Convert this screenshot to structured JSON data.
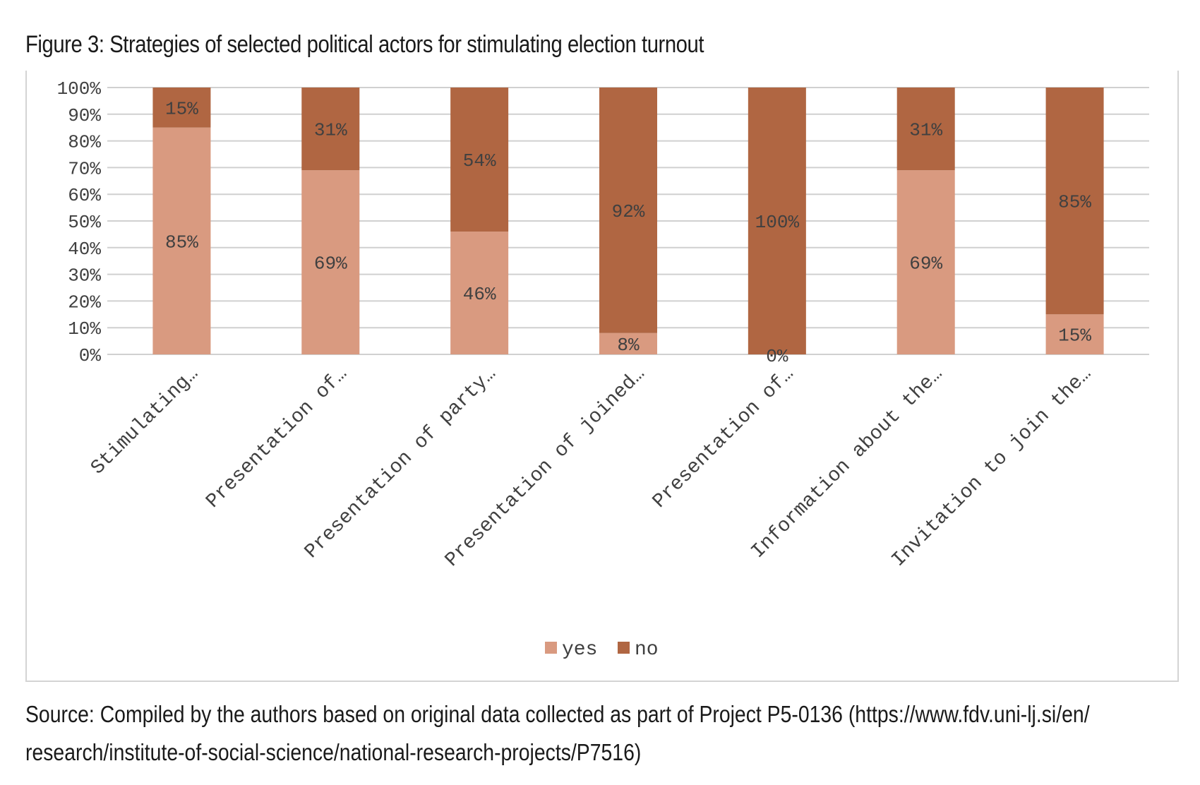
{
  "figure": {
    "title": "Figure 3: Strategies of selected political actors for stimulating election turnout",
    "source_line1": "Source: Compiled by the authors based on original data collected as part of Project P5-0136 (https://www.fdv.uni-lj.si/en/",
    "source_line2": "research/institute-of-social-science/national-research-projects/P7516)"
  },
  "chart_data": {
    "type": "bar",
    "stacked": true,
    "percent_stacked": true,
    "categories": [
      "Stimulating…",
      "Presentation of…",
      "Presentation of party…",
      "Presentation of joined…",
      "Presentation of…",
      "Information about the…",
      "Invitation to join the…"
    ],
    "series": [
      {
        "name": "yes",
        "values": [
          85,
          69,
          46,
          8,
          0,
          69,
          15
        ],
        "labels": [
          "85%",
          "69%",
          "46%",
          "8%",
          "0%",
          "69%",
          "15%"
        ]
      },
      {
        "name": "no",
        "values": [
          15,
          31,
          54,
          92,
          100,
          31,
          85
        ],
        "labels": [
          "15%",
          "31%",
          "54%",
          "92%",
          "100%",
          "31%",
          "85%"
        ]
      }
    ],
    "colors": {
      "yes": "#d99a80",
      "no": "#b06642",
      "grid": "#d0d0d0",
      "text": "#404040"
    },
    "ylim": [
      0,
      100
    ],
    "yticks": [
      "0%",
      "10%",
      "20%",
      "30%",
      "40%",
      "50%",
      "60%",
      "70%",
      "80%",
      "90%",
      "100%"
    ],
    "grid": true,
    "legend_position": "bottom",
    "xlabel": "",
    "ylabel": ""
  }
}
